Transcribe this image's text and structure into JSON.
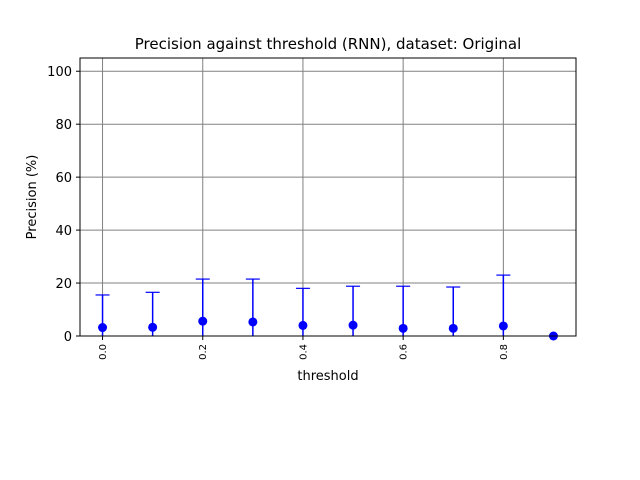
{
  "chart_data": {
    "type": "scatter",
    "title": "Precision against threshold (RNN), dataset: Original",
    "xlabel": "threshold",
    "ylabel": "Precision (%)",
    "xlim": [
      -0.045,
      0.945
    ],
    "ylim": [
      0,
      105
    ],
    "grid": true,
    "x_ticks": [
      0.0,
      0.2,
      0.4,
      0.6,
      0.8
    ],
    "x_tick_labels": [
      "0.0",
      "0.2",
      "0.4",
      "0.6",
      "0.8"
    ],
    "y_ticks": [
      0,
      20,
      40,
      60,
      80,
      100
    ],
    "y_tick_labels": [
      "0",
      "20",
      "40",
      "60",
      "80",
      "100"
    ],
    "series": [
      {
        "marker": "circle",
        "error_bars": "upper",
        "x": [
          0.0,
          0.1,
          0.2,
          0.3,
          0.4,
          0.5,
          0.6,
          0.7,
          0.8,
          0.9
        ],
        "y": [
          3.2,
          3.3,
          5.6,
          5.3,
          4.0,
          4.1,
          2.9,
          2.9,
          3.8,
          0.0
        ],
        "upper": [
          15.5,
          16.5,
          21.5,
          21.5,
          18.0,
          18.8,
          18.8,
          18.5,
          23.0,
          0.0
        ]
      }
    ],
    "colors": {
      "series": "#0000ff",
      "grid": "#808080",
      "axes": "#000000"
    }
  }
}
